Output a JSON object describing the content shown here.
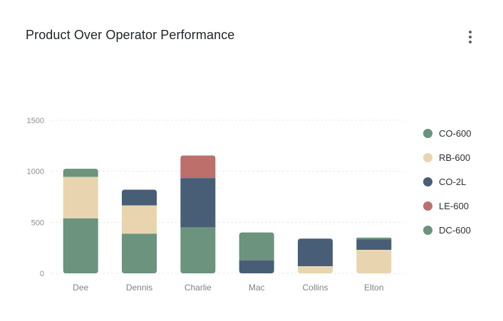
{
  "header": {
    "title": "Product Over Operator Performance",
    "menu_icon": "more-vertical-icon"
  },
  "chart_data": {
    "type": "bar",
    "stacked": true,
    "title": "Product Over Operator Performance",
    "xlabel": "",
    "ylabel": "",
    "ylim": [
      0,
      1500
    ],
    "yticks": [
      0,
      500,
      1000,
      1500
    ],
    "grid": true,
    "legend_position": "right",
    "categories": [
      "Dee",
      "Dennis",
      "Charlie",
      "Mac",
      "Collins",
      "Elton"
    ],
    "series": [
      {
        "name": "CO-600",
        "color": "#6b937d",
        "values": [
          540,
          390,
          450,
          0,
          0,
          0
        ]
      },
      {
        "name": "RB-600",
        "color": "#e8d5b0",
        "values": [
          405,
          275,
          0,
          0,
          70,
          230
        ]
      },
      {
        "name": "CO-2L",
        "color": "#485e77",
        "values": [
          0,
          155,
          485,
          130,
          270,
          105
        ]
      },
      {
        "name": "LE-600",
        "color": "#bc6f6b",
        "values": [
          0,
          0,
          220,
          0,
          0,
          0
        ]
      },
      {
        "name": "DC-600",
        "color": "#6b937d",
        "values": [
          80,
          0,
          0,
          270,
          0,
          15
        ]
      }
    ]
  }
}
